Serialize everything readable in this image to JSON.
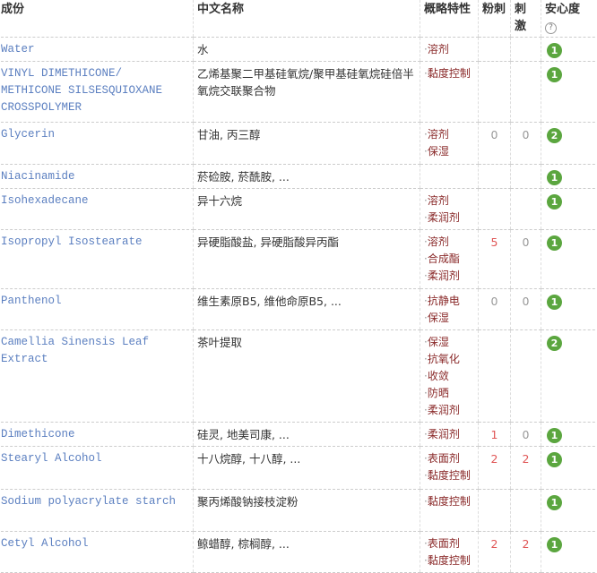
{
  "headers": {
    "ingredient": "成份",
    "chinese": "中文名称",
    "properties": "概略特性",
    "acne": "粉刺",
    "irritation": "刺激",
    "safety": "安心度",
    "help": "?"
  },
  "colors": {
    "safety_badge": "#5ba63f",
    "ingredient_link": "#5b7fc0",
    "property": "#8a2a2a",
    "risk_number": "#e05555"
  },
  "rows": [
    {
      "ingredient": "Water",
      "chinese": "水",
      "properties": [
        "溶剂"
      ],
      "acne": "",
      "irritation": "",
      "safety": "1"
    },
    {
      "ingredient": "VINYL DIMETHICONE/ METHICONE SILSESQUIOXANE CROSSPOLYMER",
      "chinese": "乙烯基聚二甲基硅氧烷/聚甲基硅氧烷硅倍半氧烷交联聚合物",
      "properties": [
        "黏度控制"
      ],
      "acne": "",
      "irritation": "",
      "safety": "1"
    },
    {
      "ingredient": "Glycerin",
      "chinese": "甘油, 丙三醇",
      "properties": [
        "溶剂",
        "保湿"
      ],
      "acne": "0",
      "irritation": "0",
      "safety": "2"
    },
    {
      "ingredient": "Niacinamide",
      "chinese": "菸硷胺, 菸酰胺, ...",
      "properties": [],
      "acne": "",
      "irritation": "",
      "safety": "1"
    },
    {
      "ingredient": "Isohexadecane",
      "chinese": "异十六烷",
      "properties": [
        "溶剂",
        "柔润剂"
      ],
      "acne": "",
      "irritation": "",
      "safety": "1"
    },
    {
      "ingredient": "Isopropyl Isostearate",
      "chinese": "异硬脂酸盐, 异硬脂酸异丙酯",
      "properties": [
        "溶剂",
        "合成酯",
        "柔润剂"
      ],
      "acne": "5",
      "irritation": "0",
      "safety": "1"
    },
    {
      "ingredient": "Panthenol",
      "chinese": "维生素原B5, 维他命原B5, ...",
      "properties": [
        "抗静电",
        "保湿"
      ],
      "acne": "0",
      "irritation": "0",
      "safety": "1"
    },
    {
      "ingredient": "Camellia Sinensis Leaf Extract",
      "chinese": "茶叶提取",
      "properties": [
        "保湿",
        "抗氧化",
        "收敛",
        "防晒",
        "柔润剂"
      ],
      "acne": "",
      "irritation": "",
      "safety": "2"
    },
    {
      "ingredient": "Dimethicone",
      "chinese": "硅灵, 地美司康, ...",
      "properties": [
        "柔润剂"
      ],
      "acne": "1",
      "irritation": "0",
      "safety": "1"
    },
    {
      "ingredient": "Stearyl Alcohol",
      "chinese": "十八烷醇, 十八醇, ...",
      "properties": [
        "表面剂",
        "黏度控制"
      ],
      "acne": "2",
      "irritation": "2",
      "safety": "1"
    },
    {
      "ingredient": "Sodium polyacrylate starch",
      "chinese": "聚丙烯酸钠接枝淀粉",
      "properties": [
        "黏度控制"
      ],
      "acne": "",
      "irritation": "",
      "safety": "1"
    },
    {
      "ingredient": "Cetyl Alcohol",
      "chinese": "鲸蜡醇, 棕榈醇, ...",
      "properties": [
        "表面剂",
        "黏度控制"
      ],
      "acne": "2",
      "irritation": "2",
      "safety": "1"
    }
  ]
}
